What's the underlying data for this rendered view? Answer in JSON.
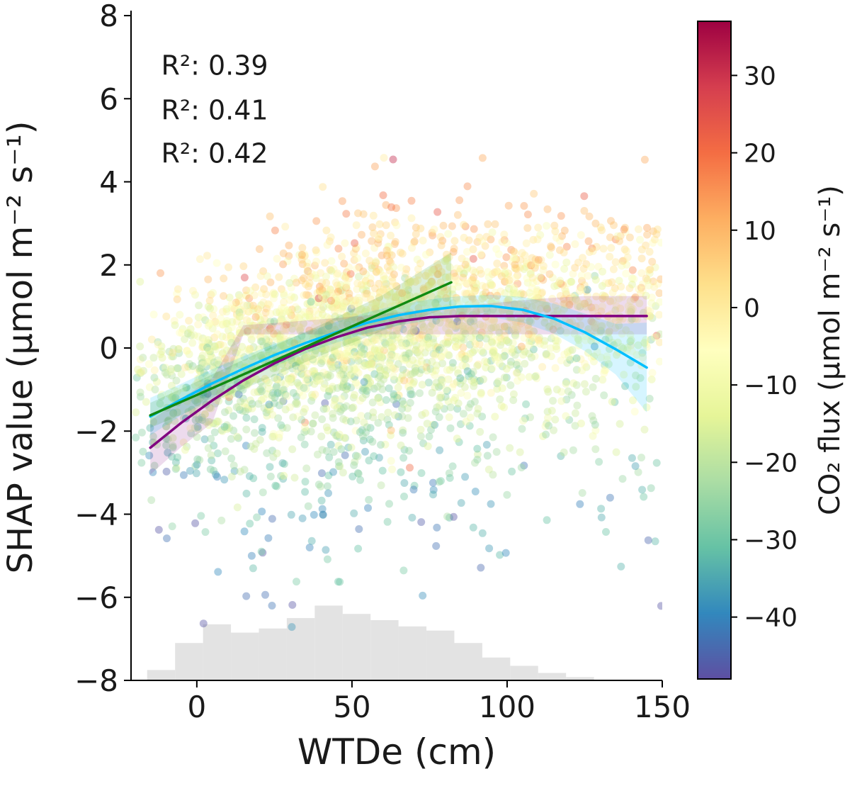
{
  "chart_data": {
    "type": "scatter",
    "xlabel": "WTDe (cm)",
    "ylabel": "SHAP value (μmol m⁻² s⁻¹)",
    "xlim": [
      -21.2,
      150
    ],
    "ylim": [
      -8,
      8.12
    ],
    "xticks": [
      0,
      50,
      100,
      150
    ],
    "xtick_labels": [
      "0",
      "50",
      "100",
      "150"
    ],
    "yticks": [
      -8,
      -6,
      -4,
      -2,
      0,
      2,
      4,
      6,
      8
    ],
    "ytick_labels": [
      "−8",
      "−6",
      "−4",
      "−2",
      "0",
      "2",
      "4",
      "6",
      "8"
    ],
    "grid": false,
    "legend_position": "none",
    "colorbar": {
      "label": "CO₂ flux (μmol m⁻² s⁻¹)",
      "vmin": -48,
      "vmax": 37,
      "ticks": [
        30,
        20,
        10,
        0,
        -10,
        -20,
        -30,
        -40
      ],
      "tick_labels": [
        "30",
        "20",
        "10",
        "0",
        "−10",
        "−20",
        "−30",
        "−40"
      ],
      "colormap": "Spectral",
      "stops": [
        "#5e4fa2",
        "#3288bd",
        "#66c2a5",
        "#abdda4",
        "#e6f598",
        "#ffffbf",
        "#fee08b",
        "#fdae61",
        "#f46d43",
        "#d53e4f",
        "#9e0142"
      ]
    },
    "fits": [
      {
        "key": "purple",
        "color": "#800080",
        "band_opacity": 0.14,
        "r2": 0.39,
        "r2_label": "R²: 0.39",
        "anno_xy": [
          -11.5,
          6.8
        ],
        "x": [
          -15,
          -5,
          5,
          15,
          25,
          35,
          45,
          55,
          65,
          75,
          85,
          95,
          105,
          115,
          125,
          135,
          145
        ],
        "y": [
          -2.4,
          -1.8,
          -1.26,
          -0.78,
          -0.37,
          -0.02,
          0.26,
          0.49,
          0.64,
          0.74,
          0.77,
          0.77,
          0.77,
          0.77,
          0.77,
          0.77,
          0.77
        ],
        "band_upper": [
          -1.75,
          -1.22,
          -0.72,
          0.55,
          0.6,
          0.66,
          0.72,
          0.79,
          0.86,
          0.93,
          1.0,
          1.08,
          1.15,
          1.21,
          1.25,
          1.25,
          1.25
        ],
        "band_lower": [
          -3.05,
          -2.38,
          -1.8,
          0.33,
          0.33,
          0.33,
          0.33,
          0.33,
          0.33,
          0.33,
          0.33,
          0.33,
          0.33,
          0.33,
          0.33,
          0.33,
          0.33
        ]
      },
      {
        "key": "cyan",
        "color": "#00bfff",
        "band_opacity": 0.16,
        "r2": 0.41,
        "r2_label": "R²: 0.41",
        "anno_xy": [
          -11.5,
          5.72
        ],
        "x": [
          -15,
          -5,
          5,
          15,
          25,
          35,
          45,
          55,
          65,
          75,
          85,
          95,
          105,
          115,
          125,
          135,
          145
        ],
        "y": [
          -1.65,
          -1.24,
          -0.85,
          -0.5,
          -0.17,
          0.12,
          0.38,
          0.61,
          0.79,
          0.92,
          1.0,
          1.01,
          0.92,
          0.71,
          0.38,
          -0.03,
          -0.47
        ],
        "band_lower": [
          -2.1,
          -1.62,
          -1.19,
          -0.8,
          -0.44,
          -0.13,
          0.13,
          0.36,
          0.54,
          0.67,
          0.75,
          0.74,
          0.61,
          0.35,
          -0.07,
          -0.64,
          -1.55
        ],
        "band_upper": [
          -1.2,
          -0.86,
          -0.51,
          -0.2,
          0.1,
          0.37,
          0.63,
          0.86,
          1.04,
          1.17,
          1.25,
          1.28,
          1.23,
          1.07,
          0.83,
          0.58,
          0.61
        ]
      },
      {
        "key": "green",
        "color": "#118a11",
        "band_opacity": 0.15,
        "r2": 0.42,
        "r2_label": "R²: 0.42",
        "anno_xy": [
          -11.5,
          4.68
        ],
        "x": [
          -15,
          0,
          20,
          40,
          60,
          82
        ],
        "y": [
          -1.62,
          -1.13,
          -0.47,
          0.19,
          0.85,
          1.58
        ],
        "band_lower": [
          -1.92,
          -1.45,
          -0.83,
          -0.18,
          0.42,
          1.0
        ],
        "band_upper": [
          -1.32,
          -0.81,
          -0.11,
          0.56,
          1.28,
          2.3
        ]
      }
    ],
    "histogram": {
      "bin_start": -16,
      "bin_width": 9,
      "baseline": -8,
      "color": "#dcdcdc",
      "opacity": 0.8,
      "heights": [
        0.25,
        0.9,
        1.35,
        1.15,
        1.25,
        1.5,
        1.8,
        1.6,
        1.45,
        1.3,
        1.2,
        0.9,
        0.55,
        0.35,
        0.18,
        0.08
      ]
    },
    "scatter_spec": {
      "seed": 12,
      "count": 3000,
      "radius": 5.5,
      "opacity": 0.42,
      "x_start": -20,
      "x_bin_width": 10,
      "x_weights": [
        2,
        4,
        6,
        8,
        8,
        9,
        10,
        10,
        9,
        8,
        8,
        7,
        6,
        5,
        4,
        4,
        3
      ],
      "mean": {
        "base": -2.05,
        "amp": 2.9,
        "x0": -22,
        "tau": 50
      },
      "upper_mu": 0.42,
      "upper_sigma": 1.0,
      "tail_frac": 0.2,
      "tail_frac_low": 0.06,
      "tail_x_threshold": 15,
      "tail_offset": 0.25,
      "tail_scale": 2.2,
      "top_frac": 0.018,
      "top_mu": 2.0,
      "top_sigma": 1.2,
      "outlier_frac": 0.02,
      "color_model": {
        "intercept": -11,
        "slope": 5.5,
        "sigma": 7.5,
        "min": -47,
        "max": 36
      }
    }
  }
}
